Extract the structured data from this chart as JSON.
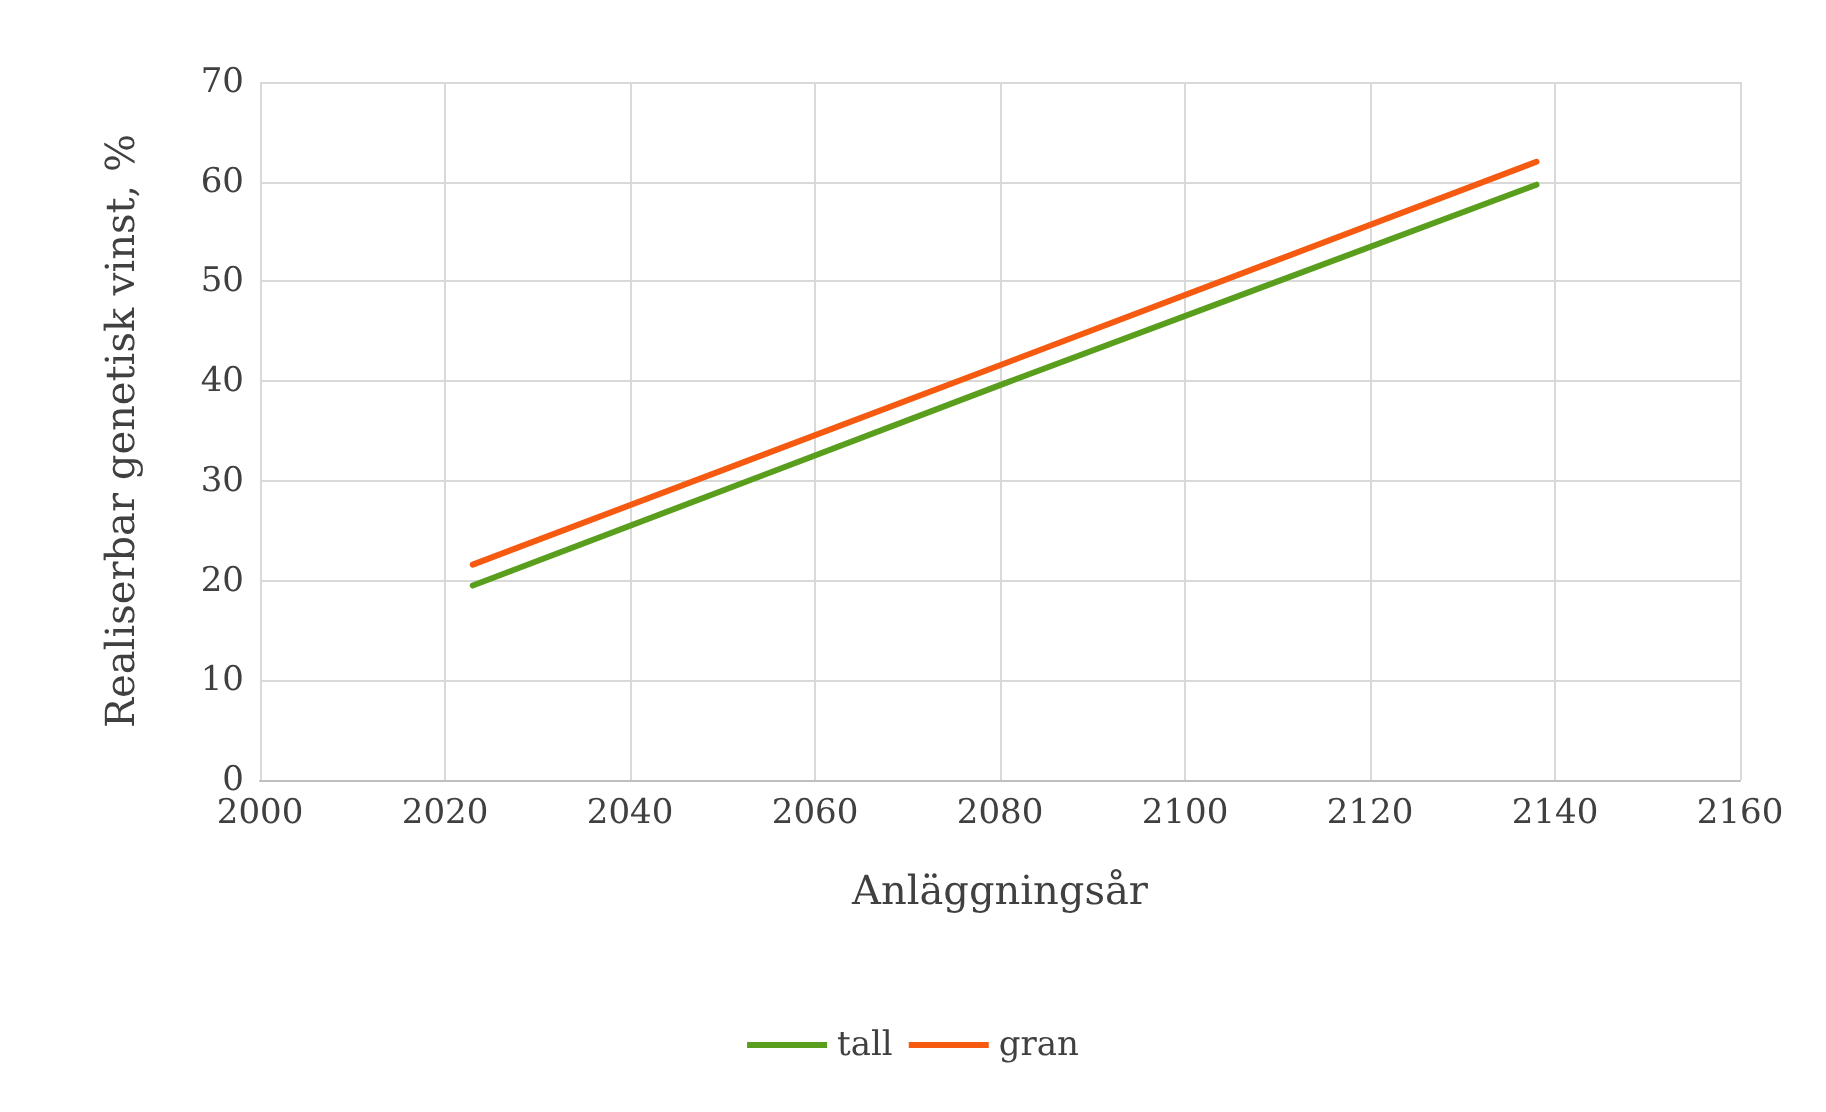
{
  "chart_data": {
    "type": "line",
    "xlabel": "Anläggningsår",
    "ylabel": "Realiserbar genetisk vinst, %",
    "xlim": [
      2000,
      2160
    ],
    "xticks": [
      2000,
      2020,
      2040,
      2060,
      2080,
      2100,
      2120,
      2140,
      2160
    ],
    "ylim": [
      0,
      70
    ],
    "yticks": [
      0,
      10,
      20,
      30,
      40,
      50,
      60,
      70
    ],
    "grid": true,
    "legend": "bottom",
    "marker": "none",
    "series": [
      {
        "name": "tall",
        "color": "#5a9e1e",
        "x": [
          2023,
          2080,
          2138
        ],
        "values": [
          19.5,
          39.6,
          59.7
        ]
      },
      {
        "name": "gran",
        "color": "#f55a10",
        "x": [
          2023,
          2080,
          2138
        ],
        "values": [
          21.6,
          41.6,
          62.0
        ]
      }
    ]
  }
}
